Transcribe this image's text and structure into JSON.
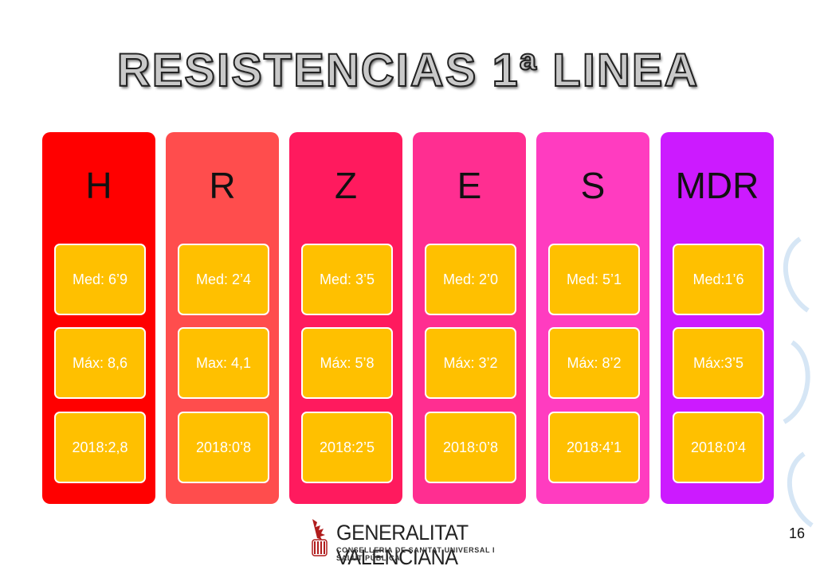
{
  "title": "RESISTENCIAS 1ª LINEA",
  "columns": [
    {
      "header": "H",
      "color": "#ff0000",
      "med": "Med: 6’9",
      "max": "Máx: 8,6",
      "year": "2018:2,8"
    },
    {
      "header": "R",
      "color": "#ff4d4d",
      "med": "Med: 2’4",
      "max": "Max: 4,1",
      "year": "2018:0’8"
    },
    {
      "header": "Z",
      "color": "#ff1a5e",
      "med": "Med: 3’5",
      "max": "Máx: 5’8",
      "year": "2018:2’5"
    },
    {
      "header": "E",
      "color": "#ff2e91",
      "med": "Med: 2’0",
      "max": "Máx: 3’2",
      "year": "2018:0’8"
    },
    {
      "header": "S",
      "color": "#ff3cc0",
      "med": "Med: 5’1",
      "max": "Máx: 8’2",
      "year": "2018:4’1"
    },
    {
      "header": "MDR",
      "color": "#cc1aff",
      "med": "Med:1’6",
      "max": "Máx:3’5",
      "year": "2018:0’4"
    }
  ],
  "box_color": "#ffc000",
  "footer": {
    "org_name": "GENERALITAT VALENCIANA",
    "org_sub": "CONSELLERIA DE SANITAT UNIVERSAL I SALUT PÚBLICA",
    "logo_icon": "valencian-coat-of-arms-icon"
  },
  "page_number": "16"
}
